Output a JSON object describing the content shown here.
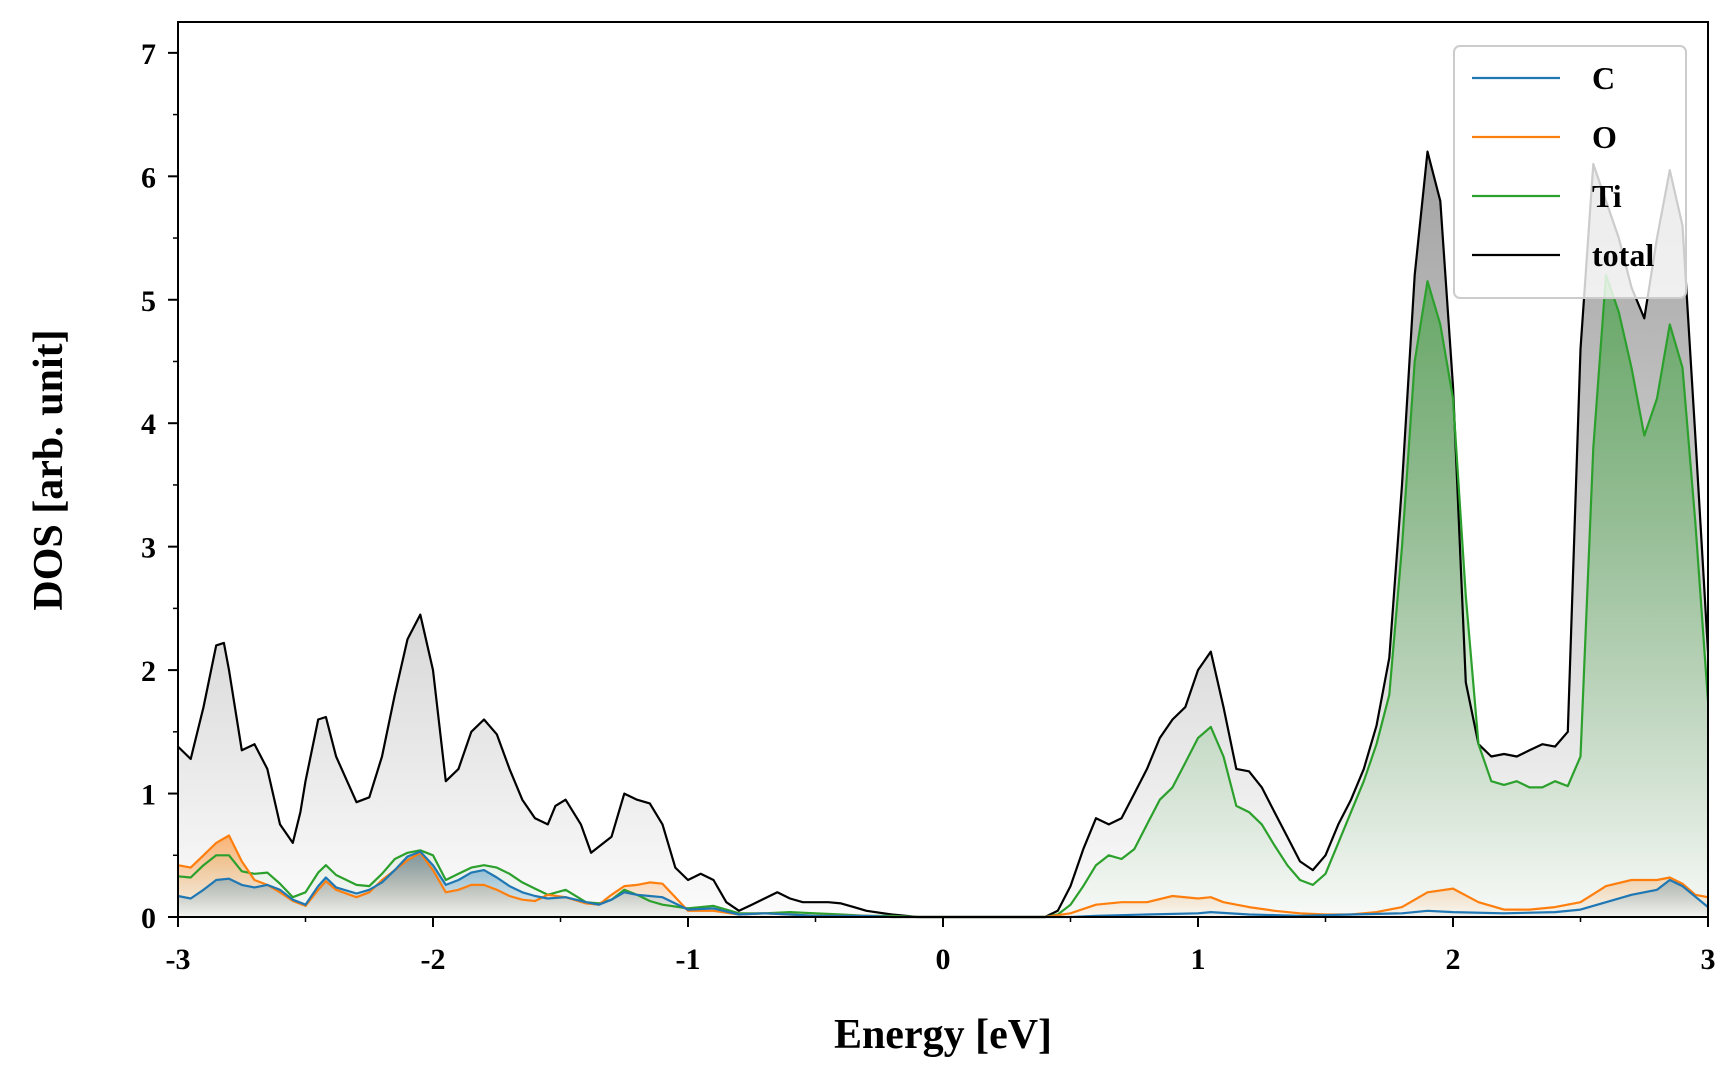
{
  "chart_data": {
    "type": "line",
    "title": "",
    "xlabel": "Energy [eV]",
    "ylabel": "DOS [arb. unit]",
    "xlim": [
      -3,
      3
    ],
    "ylim": [
      0,
      7.25
    ],
    "grid": false,
    "legend_position": "top-right",
    "x_ticks": [
      -3,
      -2,
      -1,
      0,
      1,
      2,
      3
    ],
    "y_ticks": [
      0,
      1,
      2,
      3,
      4,
      5,
      6,
      7
    ],
    "x_tick_labels": [
      "-3",
      "-2",
      "-1",
      "0",
      "1",
      "2",
      "3"
    ],
    "y_tick_labels": [
      "0",
      "1",
      "2",
      "3",
      "4",
      "5",
      "6",
      "7"
    ],
    "series": [
      {
        "name": "C",
        "color": "#1f77b4",
        "x": [
          -3.0,
          -2.95,
          -2.9,
          -2.85,
          -2.8,
          -2.75,
          -2.7,
          -2.65,
          -2.6,
          -2.55,
          -2.5,
          -2.45,
          -2.42,
          -2.38,
          -2.3,
          -2.25,
          -2.2,
          -2.15,
          -2.1,
          -2.05,
          -2.0,
          -1.95,
          -1.9,
          -1.85,
          -1.8,
          -1.75,
          -1.7,
          -1.65,
          -1.6,
          -1.55,
          -1.48,
          -1.4,
          -1.35,
          -1.3,
          -1.25,
          -1.2,
          -1.15,
          -1.1,
          -1.0,
          -0.9,
          -0.8,
          -0.7,
          -0.6,
          -0.5,
          -0.4,
          -0.3,
          -0.2,
          -0.1,
          0.0,
          0.2,
          0.4,
          0.5,
          0.6,
          0.8,
          1.0,
          1.05,
          1.2,
          1.4,
          1.6,
          1.8,
          1.9,
          2.0,
          2.2,
          2.4,
          2.5,
          2.6,
          2.7,
          2.8,
          2.85,
          2.9,
          3.0
        ],
        "y": [
          0.17,
          0.15,
          0.22,
          0.3,
          0.31,
          0.26,
          0.24,
          0.26,
          0.22,
          0.14,
          0.1,
          0.25,
          0.32,
          0.24,
          0.19,
          0.22,
          0.28,
          0.38,
          0.49,
          0.53,
          0.42,
          0.26,
          0.3,
          0.36,
          0.38,
          0.32,
          0.25,
          0.2,
          0.17,
          0.15,
          0.16,
          0.12,
          0.1,
          0.14,
          0.2,
          0.18,
          0.17,
          0.16,
          0.06,
          0.07,
          0.02,
          0.03,
          0.02,
          0.01,
          0.01,
          0.01,
          0.0,
          0.0,
          0.0,
          0.0,
          0.0,
          0.0,
          0.01,
          0.02,
          0.03,
          0.04,
          0.02,
          0.01,
          0.02,
          0.03,
          0.05,
          0.04,
          0.03,
          0.04,
          0.06,
          0.12,
          0.18,
          0.22,
          0.3,
          0.25,
          0.08
        ]
      },
      {
        "name": "O",
        "color": "#ff7f0e",
        "x": [
          -3.0,
          -2.95,
          -2.9,
          -2.85,
          -2.8,
          -2.75,
          -2.7,
          -2.65,
          -2.6,
          -2.55,
          -2.5,
          -2.45,
          -2.42,
          -2.38,
          -2.3,
          -2.25,
          -2.2,
          -2.15,
          -2.1,
          -2.05,
          -2.0,
          -1.95,
          -1.9,
          -1.85,
          -1.8,
          -1.75,
          -1.7,
          -1.65,
          -1.6,
          -1.55,
          -1.48,
          -1.4,
          -1.35,
          -1.3,
          -1.25,
          -1.2,
          -1.15,
          -1.1,
          -1.0,
          -0.9,
          -0.8,
          -0.7,
          -0.6,
          -0.5,
          -0.4,
          -0.3,
          -0.2,
          -0.1,
          0.0,
          0.2,
          0.4,
          0.5,
          0.6,
          0.7,
          0.8,
          0.9,
          1.0,
          1.05,
          1.1,
          1.2,
          1.3,
          1.4,
          1.5,
          1.6,
          1.7,
          1.8,
          1.9,
          2.0,
          2.1,
          2.2,
          2.3,
          2.4,
          2.5,
          2.6,
          2.7,
          2.8,
          2.85,
          2.9,
          2.95,
          3.0
        ],
        "y": [
          0.42,
          0.4,
          0.5,
          0.6,
          0.66,
          0.45,
          0.3,
          0.26,
          0.2,
          0.13,
          0.09,
          0.22,
          0.29,
          0.22,
          0.16,
          0.2,
          0.3,
          0.38,
          0.46,
          0.52,
          0.38,
          0.2,
          0.22,
          0.26,
          0.26,
          0.22,
          0.17,
          0.14,
          0.13,
          0.18,
          0.16,
          0.11,
          0.1,
          0.18,
          0.25,
          0.26,
          0.28,
          0.27,
          0.05,
          0.05,
          0.02,
          0.03,
          0.02,
          0.01,
          0.01,
          0.01,
          0.0,
          0.0,
          0.0,
          0.0,
          0.0,
          0.03,
          0.1,
          0.12,
          0.12,
          0.17,
          0.15,
          0.16,
          0.12,
          0.08,
          0.05,
          0.03,
          0.02,
          0.02,
          0.04,
          0.08,
          0.2,
          0.23,
          0.12,
          0.06,
          0.06,
          0.08,
          0.12,
          0.25,
          0.3,
          0.3,
          0.32,
          0.27,
          0.18,
          0.16
        ]
      },
      {
        "name": "Ti",
        "color": "#2ca02c",
        "x": [
          -3.0,
          -2.95,
          -2.9,
          -2.85,
          -2.8,
          -2.75,
          -2.7,
          -2.65,
          -2.6,
          -2.55,
          -2.5,
          -2.45,
          -2.42,
          -2.38,
          -2.3,
          -2.25,
          -2.2,
          -2.15,
          -2.1,
          -2.05,
          -2.0,
          -1.95,
          -1.9,
          -1.85,
          -1.8,
          -1.75,
          -1.7,
          -1.65,
          -1.6,
          -1.55,
          -1.48,
          -1.4,
          -1.35,
          -1.3,
          -1.25,
          -1.2,
          -1.15,
          -1.1,
          -1.0,
          -0.9,
          -0.8,
          -0.7,
          -0.6,
          -0.5,
          -0.4,
          -0.3,
          -0.2,
          -0.1,
          0.0,
          0.1,
          0.2,
          0.3,
          0.4,
          0.45,
          0.5,
          0.55,
          0.6,
          0.65,
          0.7,
          0.75,
          0.8,
          0.85,
          0.9,
          0.95,
          1.0,
          1.05,
          1.1,
          1.15,
          1.2,
          1.25,
          1.3,
          1.35,
          1.4,
          1.45,
          1.5,
          1.55,
          1.6,
          1.65,
          1.7,
          1.75,
          1.8,
          1.85,
          1.9,
          1.95,
          2.0,
          2.05,
          2.1,
          2.15,
          2.2,
          2.25,
          2.3,
          2.35,
          2.4,
          2.45,
          2.5,
          2.55,
          2.6,
          2.65,
          2.7,
          2.75,
          2.8,
          2.85,
          2.9,
          2.95,
          3.0
        ],
        "y": [
          0.33,
          0.32,
          0.42,
          0.5,
          0.5,
          0.37,
          0.35,
          0.36,
          0.27,
          0.16,
          0.2,
          0.36,
          0.42,
          0.34,
          0.26,
          0.25,
          0.35,
          0.47,
          0.52,
          0.54,
          0.5,
          0.3,
          0.35,
          0.4,
          0.42,
          0.4,
          0.35,
          0.28,
          0.23,
          0.18,
          0.22,
          0.12,
          0.11,
          0.14,
          0.22,
          0.18,
          0.13,
          0.1,
          0.07,
          0.09,
          0.03,
          0.03,
          0.04,
          0.03,
          0.02,
          0.01,
          0.01,
          0.0,
          0.0,
          0.0,
          0.0,
          0.0,
          0.0,
          0.02,
          0.1,
          0.25,
          0.42,
          0.5,
          0.47,
          0.55,
          0.75,
          0.95,
          1.05,
          1.25,
          1.45,
          1.54,
          1.3,
          0.9,
          0.85,
          0.75,
          0.58,
          0.42,
          0.3,
          0.26,
          0.35,
          0.6,
          0.85,
          1.1,
          1.4,
          1.8,
          3.0,
          4.5,
          5.15,
          4.8,
          4.2,
          2.6,
          1.4,
          1.1,
          1.07,
          1.1,
          1.05,
          1.05,
          1.1,
          1.06,
          1.3,
          3.8,
          5.2,
          4.9,
          4.45,
          3.9,
          4.2,
          4.8,
          4.45,
          3.2,
          1.75
        ]
      },
      {
        "name": "total",
        "color": "#000000",
        "x": [
          -3.0,
          -2.95,
          -2.9,
          -2.85,
          -2.82,
          -2.8,
          -2.75,
          -2.7,
          -2.65,
          -2.6,
          -2.55,
          -2.52,
          -2.5,
          -2.45,
          -2.42,
          -2.38,
          -2.3,
          -2.25,
          -2.2,
          -2.15,
          -2.1,
          -2.05,
          -2.0,
          -1.95,
          -1.9,
          -1.85,
          -1.8,
          -1.75,
          -1.7,
          -1.65,
          -1.6,
          -1.55,
          -1.52,
          -1.48,
          -1.42,
          -1.38,
          -1.3,
          -1.25,
          -1.2,
          -1.15,
          -1.1,
          -1.05,
          -1.0,
          -0.95,
          -0.9,
          -0.85,
          -0.8,
          -0.75,
          -0.7,
          -0.65,
          -0.6,
          -0.55,
          -0.5,
          -0.45,
          -0.4,
          -0.35,
          -0.3,
          -0.2,
          -0.1,
          0.0,
          0.1,
          0.2,
          0.3,
          0.4,
          0.45,
          0.5,
          0.55,
          0.6,
          0.65,
          0.7,
          0.75,
          0.8,
          0.85,
          0.9,
          0.95,
          1.0,
          1.05,
          1.1,
          1.15,
          1.2,
          1.25,
          1.3,
          1.35,
          1.4,
          1.45,
          1.5,
          1.55,
          1.6,
          1.65,
          1.7,
          1.75,
          1.8,
          1.85,
          1.9,
          1.95,
          2.0,
          2.05,
          2.1,
          2.15,
          2.2,
          2.25,
          2.3,
          2.35,
          2.4,
          2.45,
          2.5,
          2.55,
          2.6,
          2.65,
          2.7,
          2.75,
          2.8,
          2.85,
          2.9,
          2.95,
          3.0
        ],
        "y": [
          1.38,
          1.28,
          1.7,
          2.2,
          2.22,
          2.0,
          1.35,
          1.4,
          1.2,
          0.75,
          0.6,
          0.85,
          1.1,
          1.6,
          1.62,
          1.3,
          0.93,
          0.97,
          1.3,
          1.8,
          2.25,
          2.45,
          2.0,
          1.1,
          1.2,
          1.5,
          1.6,
          1.48,
          1.2,
          0.95,
          0.8,
          0.75,
          0.9,
          0.95,
          0.75,
          0.52,
          0.65,
          1.0,
          0.95,
          0.92,
          0.75,
          0.4,
          0.3,
          0.35,
          0.3,
          0.12,
          0.05,
          0.1,
          0.15,
          0.2,
          0.15,
          0.12,
          0.12,
          0.12,
          0.11,
          0.08,
          0.05,
          0.02,
          0.0,
          0.0,
          0.0,
          0.0,
          0.0,
          0.0,
          0.05,
          0.25,
          0.55,
          0.8,
          0.75,
          0.8,
          1.0,
          1.2,
          1.45,
          1.6,
          1.7,
          2.0,
          2.15,
          1.7,
          1.2,
          1.18,
          1.05,
          0.85,
          0.65,
          0.45,
          0.38,
          0.5,
          0.75,
          0.95,
          1.2,
          1.55,
          2.1,
          3.5,
          5.2,
          6.2,
          5.8,
          4.3,
          1.9,
          1.4,
          1.3,
          1.32,
          1.3,
          1.35,
          1.4,
          1.38,
          1.5,
          4.6,
          6.1,
          5.8,
          5.5,
          5.1,
          4.85,
          5.5,
          6.05,
          5.6,
          3.9,
          2.15
        ]
      }
    ]
  }
}
